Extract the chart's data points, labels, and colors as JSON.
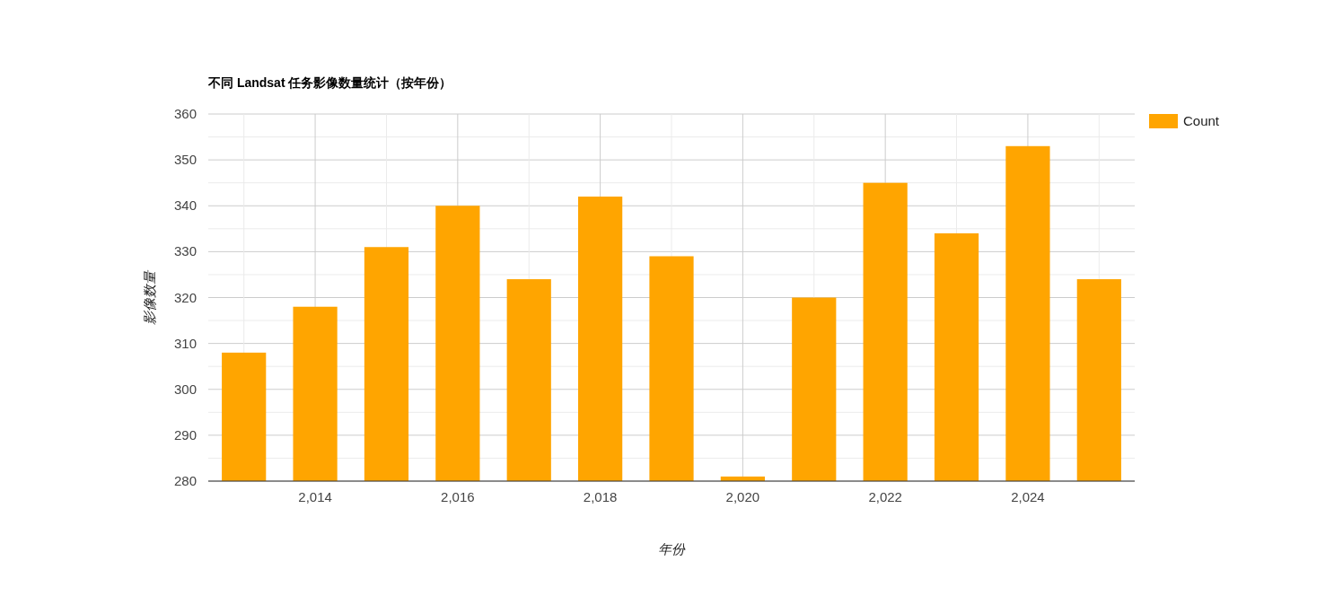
{
  "chart_data": {
    "type": "bar",
    "title": "不同 Landsat 任务影像数量统计（按年份）",
    "xlabel": "年份",
    "ylabel": "影像数量",
    "x": [
      2013,
      2014,
      2015,
      2016,
      2017,
      2018,
      2019,
      2020,
      2021,
      2022,
      2023,
      2024,
      2025
    ],
    "series": [
      {
        "name": "Count",
        "color": "#ffa500",
        "values": [
          308,
          318,
          331,
          340,
          324,
          342,
          329,
          281,
          320,
          345,
          334,
          353,
          324
        ]
      }
    ],
    "xlim": [
      2012.5,
      2025.5
    ],
    "xticks": [
      {
        "value": 2013,
        "label": null
      },
      {
        "value": 2014,
        "label": "2,014"
      },
      {
        "value": 2015,
        "label": null
      },
      {
        "value": 2016,
        "label": "2,016"
      },
      {
        "value": 2017,
        "label": null
      },
      {
        "value": 2018,
        "label": "2,018"
      },
      {
        "value": 2019,
        "label": null
      },
      {
        "value": 2020,
        "label": "2,020"
      },
      {
        "value": 2021,
        "label": null
      },
      {
        "value": 2022,
        "label": "2,022"
      },
      {
        "value": 2023,
        "label": null
      },
      {
        "value": 2024,
        "label": "2,024"
      },
      {
        "value": 2025,
        "label": null
      }
    ],
    "ylim": [
      280,
      360
    ],
    "yticks": [
      280,
      {
        "value": 285,
        "label": null
      },
      290,
      {
        "value": 295,
        "label": null
      },
      300,
      {
        "value": 305,
        "label": null
      },
      310,
      {
        "value": 315,
        "label": null
      },
      320,
      {
        "value": 325,
        "label": null
      },
      330,
      {
        "value": 335,
        "label": null
      },
      340,
      {
        "value": 345,
        "label": null
      },
      350,
      {
        "value": 355,
        "label": null
      },
      360
    ],
    "grid": true,
    "legend": "top right"
  }
}
